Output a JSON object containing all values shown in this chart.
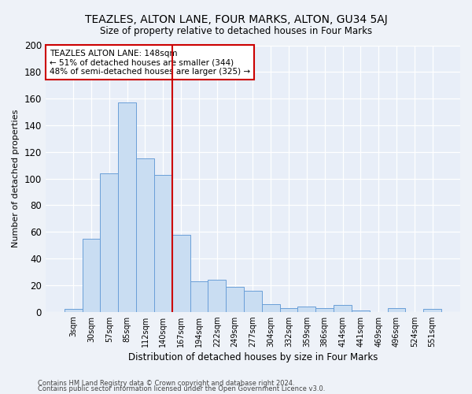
{
  "title": "TEAZLES, ALTON LANE, FOUR MARKS, ALTON, GU34 5AJ",
  "subtitle": "Size of property relative to detached houses in Four Marks",
  "xlabel": "Distribution of detached houses by size in Four Marks",
  "ylabel": "Number of detached properties",
  "categories": [
    "3sqm",
    "30sqm",
    "57sqm",
    "85sqm",
    "112sqm",
    "140sqm",
    "167sqm",
    "194sqm",
    "222sqm",
    "249sqm",
    "277sqm",
    "304sqm",
    "332sqm",
    "359sqm",
    "386sqm",
    "414sqm",
    "441sqm",
    "469sqm",
    "496sqm",
    "524sqm",
    "551sqm"
  ],
  "values": [
    2,
    55,
    104,
    157,
    115,
    103,
    58,
    23,
    24,
    19,
    16,
    6,
    3,
    4,
    3,
    5,
    1,
    0,
    3,
    0,
    2
  ],
  "bar_color": "#c9ddf2",
  "bar_edge_color": "#6a9fd8",
  "vline_x": 3.5,
  "vline_color": "#cc0000",
  "annotation_text": "TEAZLES ALTON LANE: 148sqm\n← 51% of detached houses are smaller (344)\n48% of semi-detached houses are larger (325) →",
  "annotation_box_color": "#ffffff",
  "annotation_box_edge": "#cc0000",
  "ylim": [
    0,
    200
  ],
  "yticks": [
    0,
    20,
    40,
    60,
    80,
    100,
    120,
    140,
    160,
    180,
    200
  ],
  "footer1": "Contains HM Land Registry data © Crown copyright and database right 2024.",
  "footer2": "Contains public sector information licensed under the Open Government Licence v3.0.",
  "bg_color": "#eef2f8",
  "plot_bg_color": "#e8eef8"
}
